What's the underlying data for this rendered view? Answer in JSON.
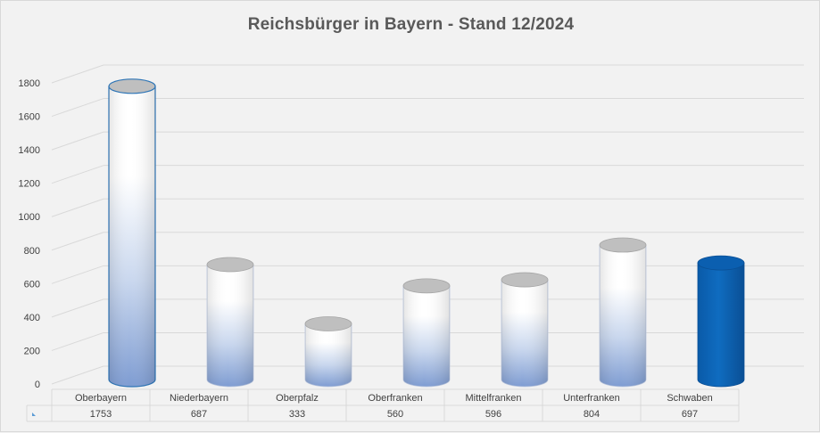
{
  "chart_data": {
    "type": "bar",
    "title": "Reichsbürger in Bayern  - Stand 12/2024",
    "categories": [
      "Oberbayern",
      "Niederbayern",
      "Oberpfalz",
      "Oberfranken",
      "Mittelfranken",
      "Unterfranken",
      "Schwaben"
    ],
    "values": [
      1753,
      687,
      333,
      560,
      596,
      804,
      697
    ],
    "ylim": [
      0,
      1800
    ],
    "yticks": [
      0,
      200,
      400,
      600,
      800,
      1000,
      1200,
      1400,
      1600,
      1800
    ],
    "grid": true,
    "data_table": true,
    "highlight_category": "Schwaben",
    "colors": {
      "bar_light": "#ffffff",
      "bar_shade": "#8fa9d6",
      "highlight": "#0f6cc0",
      "grid": "#d9d9d9",
      "text": "#404040",
      "title": "#595959"
    }
  }
}
